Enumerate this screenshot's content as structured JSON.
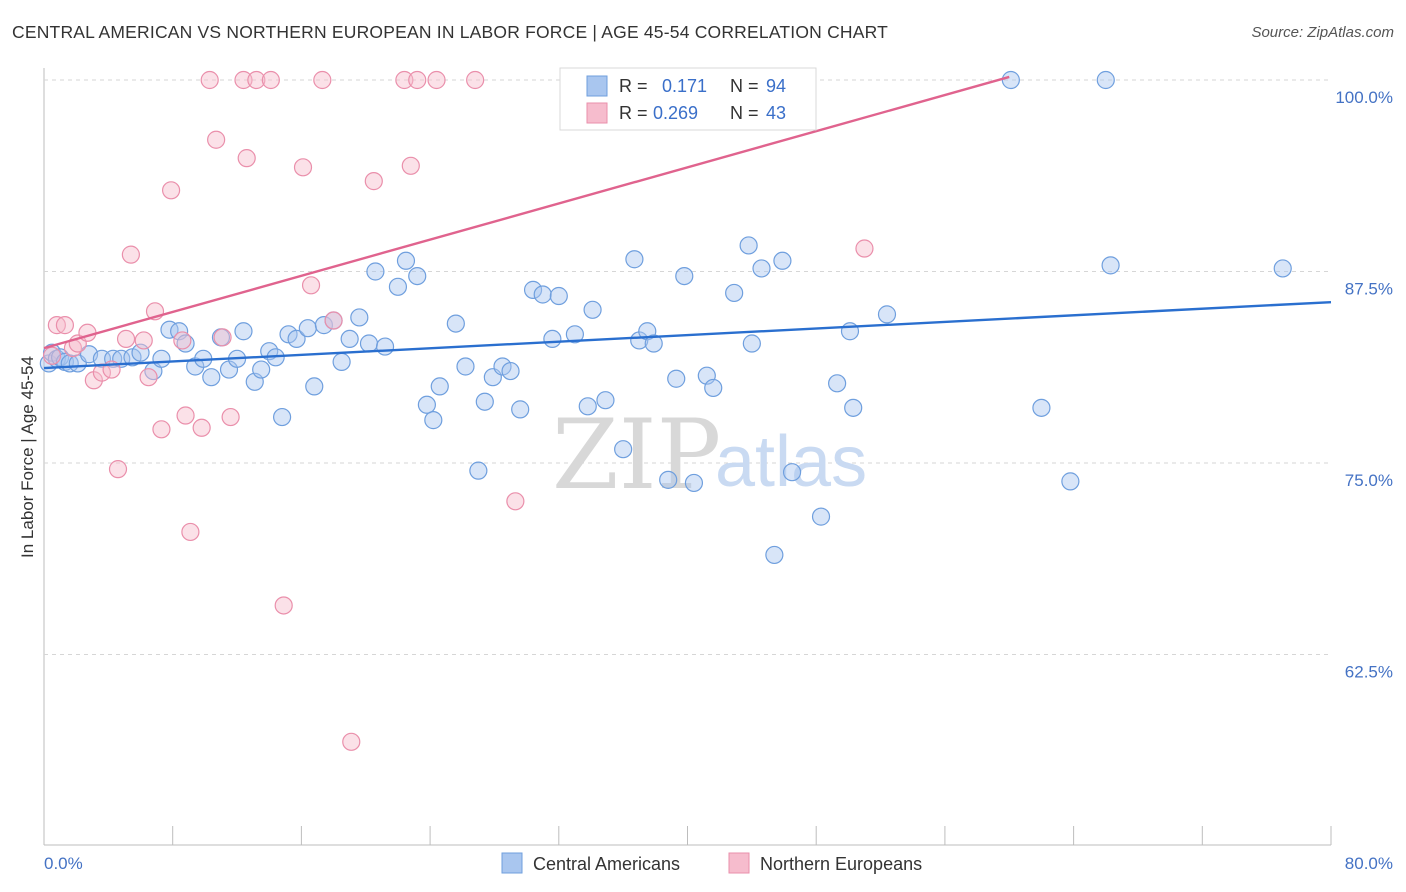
{
  "header": {
    "title": "CENTRAL AMERICAN VS NORTHERN EUROPEAN IN LABOR FORCE | AGE 45-54 CORRELATION CHART",
    "source": "Source: ZipAtlas.com"
  },
  "watermark": {
    "zip": "ZIP",
    "atlas": "atlas"
  },
  "legend_top": {
    "rows": [
      {
        "r_label": "R =",
        "r_value": "0.171",
        "n_label": "N =",
        "n_value": "94"
      },
      {
        "r_label": "R =",
        "r_value": "0.269",
        "n_label": "N =",
        "n_value": "43"
      }
    ]
  },
  "colors": {
    "blue_fill": "#a9c6ef",
    "blue_stroke": "#6f9fde",
    "blue_line": "#2a6fcf",
    "pink_fill": "#f6bccd",
    "pink_stroke": "#ea8fab",
    "pink_line": "#e0638e",
    "tick_text": "#4472c4",
    "grid": "#d6d6d6"
  },
  "chart_data": {
    "type": "scatter",
    "title": "CENTRAL AMERICAN VS NORTHERN EUROPEAN IN LABOR FORCE | AGE 45-54 CORRELATION CHART",
    "xlabel": "",
    "ylabel": "In Labor Force | Age 45-54",
    "xlim": [
      0,
      80
    ],
    "ylim": [
      50.5,
      101
    ],
    "x_tick_labels": [
      "0.0%",
      "80.0%"
    ],
    "y_ticks": [
      62.5,
      75.0,
      87.5,
      100.0
    ],
    "y_tick_labels": [
      "62.5%",
      "75.0%",
      "87.5%",
      "100.0%"
    ],
    "grid": true,
    "legend_position": "bottom-center",
    "series": [
      {
        "name": "Central Americans",
        "color": "blue",
        "r": 0.171,
        "n": 94,
        "trend": {
          "x": [
            0,
            80
          ],
          "y": [
            81.2,
            85.5
          ]
        },
        "points": [
          [
            0.3,
            81.5
          ],
          [
            0.5,
            82.2
          ],
          [
            0.8,
            81.8
          ],
          [
            1.0,
            81.9
          ],
          [
            1.3,
            81.6
          ],
          [
            1.6,
            81.5
          ],
          [
            2.1,
            81.5
          ],
          [
            2.8,
            82.1
          ],
          [
            3.6,
            81.8
          ],
          [
            4.3,
            81.8
          ],
          [
            4.8,
            81.8
          ],
          [
            5.5,
            81.9
          ],
          [
            6.0,
            82.2
          ],
          [
            6.8,
            81.0
          ],
          [
            7.3,
            81.8
          ],
          [
            7.8,
            83.7
          ],
          [
            8.4,
            83.6
          ],
          [
            8.8,
            82.8
          ],
          [
            9.4,
            81.3
          ],
          [
            9.9,
            81.8
          ],
          [
            10.4,
            80.6
          ],
          [
            11.0,
            83.2
          ],
          [
            11.5,
            81.1
          ],
          [
            12.0,
            81.8
          ],
          [
            12.4,
            83.6
          ],
          [
            13.1,
            80.3
          ],
          [
            13.5,
            81.1
          ],
          [
            14.0,
            82.3
          ],
          [
            14.4,
            81.9
          ],
          [
            14.8,
            78.0
          ],
          [
            15.2,
            83.4
          ],
          [
            15.7,
            83.1
          ],
          [
            16.4,
            83.8
          ],
          [
            16.8,
            80.0
          ],
          [
            17.4,
            84.0
          ],
          [
            18.0,
            84.3
          ],
          [
            18.5,
            81.6
          ],
          [
            19.0,
            83.1
          ],
          [
            19.6,
            84.5
          ],
          [
            20.2,
            82.8
          ],
          [
            20.6,
            87.5
          ],
          [
            21.2,
            82.6
          ],
          [
            22.0,
            86.5
          ],
          [
            22.5,
            88.2
          ],
          [
            23.2,
            87.2
          ],
          [
            23.8,
            78.8
          ],
          [
            24.2,
            77.8
          ],
          [
            24.6,
            80.0
          ],
          [
            25.6,
            84.1
          ],
          [
            26.2,
            81.3
          ],
          [
            27.0,
            74.5
          ],
          [
            27.4,
            79.0
          ],
          [
            27.9,
            80.6
          ],
          [
            28.5,
            81.3
          ],
          [
            29.0,
            81.0
          ],
          [
            29.6,
            78.5
          ],
          [
            30.4,
            86.3
          ],
          [
            31.0,
            86.0
          ],
          [
            31.6,
            83.1
          ],
          [
            32.0,
            85.9
          ],
          [
            33.0,
            83.4
          ],
          [
            33.8,
            78.7
          ],
          [
            34.1,
            85.0
          ],
          [
            34.9,
            79.1
          ],
          [
            36.0,
            75.9
          ],
          [
            36.7,
            88.3
          ],
          [
            37.0,
            83.0
          ],
          [
            37.5,
            83.6
          ],
          [
            37.9,
            82.8
          ],
          [
            38.8,
            73.9
          ],
          [
            39.3,
            80.5
          ],
          [
            39.8,
            87.2
          ],
          [
            40.4,
            73.7
          ],
          [
            41.2,
            80.7
          ],
          [
            41.6,
            79.9
          ],
          [
            42.9,
            86.1
          ],
          [
            43.8,
            89.2
          ],
          [
            44.0,
            82.8
          ],
          [
            44.6,
            87.7
          ],
          [
            45.4,
            69.0
          ],
          [
            45.9,
            88.2
          ],
          [
            46.5,
            74.4
          ],
          [
            47.1,
            100.0
          ],
          [
            48.3,
            71.5
          ],
          [
            49.3,
            80.2
          ],
          [
            50.1,
            83.6
          ],
          [
            50.3,
            78.6
          ],
          [
            52.4,
            84.7
          ],
          [
            60.1,
            100.0
          ],
          [
            62.0,
            78.6
          ],
          [
            63.8,
            73.8
          ],
          [
            66.0,
            100.0
          ],
          [
            66.3,
            87.9
          ],
          [
            77.0,
            87.7
          ]
        ]
      },
      {
        "name": "Northern Europeans",
        "color": "pink",
        "r": 0.269,
        "n": 43,
        "trend": {
          "x": [
            0,
            60
          ],
          "y": [
            82.5,
            100.2
          ]
        },
        "points": [
          [
            0.5,
            82.0
          ],
          [
            0.8,
            84.0
          ],
          [
            1.3,
            84.0
          ],
          [
            1.8,
            82.5
          ],
          [
            2.1,
            82.8
          ],
          [
            2.7,
            83.5
          ],
          [
            3.1,
            80.4
          ],
          [
            3.6,
            80.9
          ],
          [
            4.2,
            81.1
          ],
          [
            4.6,
            74.6
          ],
          [
            5.1,
            83.1
          ],
          [
            5.4,
            88.6
          ],
          [
            6.2,
            83.0
          ],
          [
            6.5,
            80.6
          ],
          [
            6.9,
            84.9
          ],
          [
            7.3,
            77.2
          ],
          [
            7.9,
            92.8
          ],
          [
            8.6,
            83.0
          ],
          [
            8.8,
            78.1
          ],
          [
            9.1,
            70.5
          ],
          [
            9.8,
            77.3
          ],
          [
            10.3,
            100.0
          ],
          [
            10.7,
            96.1
          ],
          [
            11.1,
            83.2
          ],
          [
            11.6,
            78.0
          ],
          [
            12.4,
            100.0
          ],
          [
            12.6,
            94.9
          ],
          [
            13.2,
            100.0
          ],
          [
            14.1,
            100.0
          ],
          [
            14.9,
            65.7
          ],
          [
            16.1,
            94.3
          ],
          [
            16.6,
            86.6
          ],
          [
            17.3,
            100.0
          ],
          [
            18.0,
            84.3
          ],
          [
            19.1,
            56.8
          ],
          [
            20.5,
            93.4
          ],
          [
            22.4,
            100.0
          ],
          [
            22.8,
            94.4
          ],
          [
            23.2,
            100.0
          ],
          [
            24.4,
            100.0
          ],
          [
            26.8,
            100.0
          ],
          [
            29.3,
            72.5
          ],
          [
            51.0,
            89.0
          ]
        ]
      }
    ]
  }
}
